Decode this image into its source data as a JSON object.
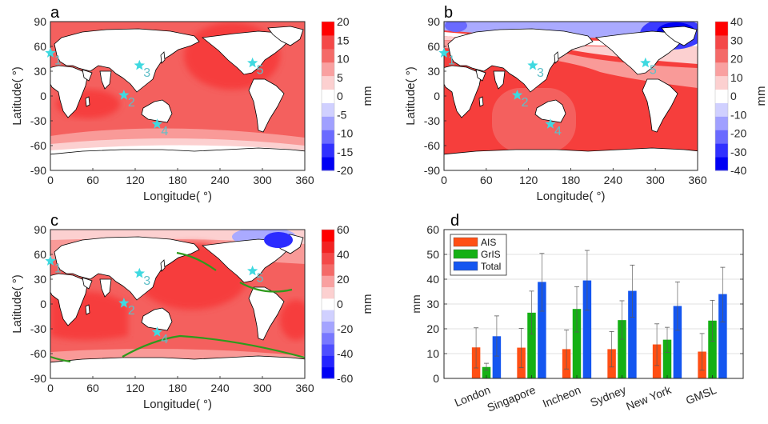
{
  "figure": {
    "stations": [
      {
        "id": "1",
        "name": "London",
        "lon": 0,
        "lat": 52
      },
      {
        "id": "2",
        "name": "Singapore",
        "lon": 104,
        "lat": 1
      },
      {
        "id": "3",
        "name": "Incheon",
        "lon": 126,
        "lat": 37
      },
      {
        "id": "4",
        "name": "Sydney",
        "lon": 151,
        "lat": -34
      },
      {
        "id": "5",
        "name": "New York",
        "lon": 286,
        "lat": 40
      }
    ],
    "station_color": "#3fd9e0",
    "station_label_color": "#5fbfc8"
  },
  "chart_data": [
    {
      "panel": "a",
      "type": "heatmap",
      "title": "a",
      "xlabel": "Longitude( °)",
      "ylabel": "Latitude( °)",
      "xlim": [
        0,
        360
      ],
      "ylim": [
        -90,
        90
      ],
      "xticks": [
        "0",
        "60",
        "120",
        "180",
        "240",
        "300",
        "360"
      ],
      "yticks": [
        "90",
        "60",
        "30",
        "0",
        "-30",
        "-60",
        "-90"
      ],
      "colorbar": {
        "label": "mm",
        "range": [
          -20,
          20
        ],
        "ticks": [
          "20",
          "15",
          "10",
          "5",
          "0",
          "-5",
          "-10",
          "-15",
          "-20"
        ],
        "levels": 8
      },
      "description": "Sea-level fingerprint from AIS: mostly 5-15 mm, max 10-15 mm in North Pacific/Atlantic and Indian Ocean, negative (to -20 mm) near Antarctica"
    },
    {
      "panel": "b",
      "type": "heatmap",
      "title": "b",
      "xlabel": "Longitude( °)",
      "ylabel": "Latitude( °)",
      "xlim": [
        0,
        360
      ],
      "ylim": [
        -90,
        90
      ],
      "xticks": [
        "0",
        "60",
        "120",
        "180",
        "240",
        "300",
        "360"
      ],
      "yticks": [
        "90",
        "60",
        "30",
        "0",
        "-30",
        "-60",
        "-90"
      ],
      "colorbar": {
        "label": "mm",
        "range": [
          -40,
          40
        ],
        "ticks": [
          "40",
          "30",
          "20",
          "10",
          "0",
          "-10",
          "-20",
          "-30",
          "-40"
        ],
        "levels": 8
      },
      "description": "Sea-level fingerprint from GrIS: 20-30 mm over most of ocean, negative (to -40 mm) near Greenland and Arctic"
    },
    {
      "panel": "c",
      "type": "heatmap",
      "title": "c",
      "xlabel": "Longitude( °)",
      "ylabel": "Latitude( °)",
      "xlim": [
        0,
        360
      ],
      "ylim": [
        -90,
        90
      ],
      "xticks": [
        "0",
        "60",
        "120",
        "180",
        "240",
        "300",
        "360"
      ],
      "yticks": [
        "90",
        "60",
        "30",
        "0",
        "-30",
        "-60",
        "-90"
      ],
      "colorbar": {
        "label": "mm",
        "range": [
          -60,
          60
        ],
        "ticks": [
          "60",
          "40",
          "20",
          "0",
          "-20",
          "-40",
          "-60"
        ],
        "levels": 12
      },
      "description": "Total fingerprint: 20-40 mm over ocean, green contour lines marking global mean level",
      "contour_color": "#2e9a1c"
    },
    {
      "panel": "d",
      "type": "bar",
      "title": "d",
      "xlabel": "",
      "ylabel": "mm",
      "ylim": [
        0,
        60
      ],
      "yticks": [
        "0",
        "10",
        "20",
        "30",
        "40",
        "50",
        "60"
      ],
      "grid": true,
      "legend_position": "top-left",
      "categories": [
        "London",
        "Singapore",
        "Incheon",
        "Sydney",
        "New York",
        "GMSL"
      ],
      "series": [
        {
          "name": "AIS",
          "color": "#ff4f14",
          "values": [
            12.5,
            12.4,
            11.8,
            11.8,
            13.7,
            10.8
          ],
          "err_low": [
            4.2,
            4.3,
            3.8,
            4.6,
            5.2,
            3.3
          ],
          "err_high": [
            20.4,
            20.2,
            19.5,
            18.9,
            22.0,
            18.1
          ]
        },
        {
          "name": "GrIS",
          "color": "#14b014",
          "values": [
            4.6,
            26.5,
            28.0,
            23.5,
            15.6,
            23.3
          ],
          "err_low": [
            3.3,
            17.9,
            18.7,
            15.8,
            10.5,
            15.0
          ],
          "err_high": [
            6.1,
            35.2,
            37.0,
            31.3,
            20.6,
            31.5
          ]
        },
        {
          "name": "Total",
          "color": "#1456f0",
          "values": [
            17.0,
            38.9,
            39.5,
            35.3,
            29.2,
            34.0
          ],
          "err_low": [
            9.0,
            27.1,
            27.5,
            24.7,
            19.4,
            22.8
          ],
          "err_high": [
            25.2,
            50.4,
            51.6,
            45.7,
            38.9,
            44.8
          ]
        }
      ]
    }
  ]
}
